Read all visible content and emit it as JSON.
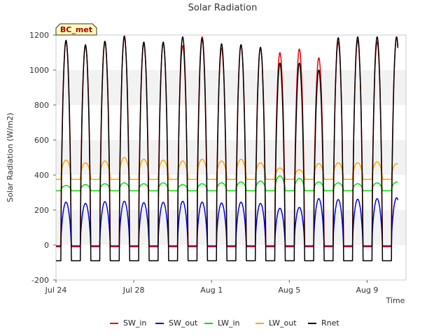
{
  "chart_data": {
    "type": "line",
    "title": "Solar Radiation",
    "ylabel": "Solar Radiation (W/m2)",
    "xlabel": "Time",
    "badge": "BC_met",
    "ylim": [
      -200,
      1200
    ],
    "xlim": [
      "2024-07-24",
      "2024-08-11"
    ],
    "yticks": [
      -200,
      0,
      200,
      400,
      600,
      800,
      1000,
      1200
    ],
    "xticks": [
      {
        "label": "Jul 24",
        "date": "2024-07-24"
      },
      {
        "label": "Jul 28",
        "date": "2024-07-28"
      },
      {
        "label": "Aug 1",
        "date": "2024-08-01"
      },
      {
        "label": "Aug 5",
        "date": "2024-08-05"
      },
      {
        "label": "Aug 9",
        "date": "2024-08-09"
      }
    ],
    "grid": "horizontal bands",
    "legend_position": "bottom",
    "day_start": "2024-07-24",
    "daily_peaks": {
      "dates": [
        "2024-07-24",
        "2024-07-25",
        "2024-07-26",
        "2024-07-27",
        "2024-07-28",
        "2024-07-29",
        "2024-07-30",
        "2024-07-31",
        "2024-08-01",
        "2024-08-02",
        "2024-08-03",
        "2024-08-04",
        "2024-08-05",
        "2024-08-06",
        "2024-08-07",
        "2024-08-08",
        "2024-08-09",
        "2024-08-10"
      ],
      "SW_in": [
        1165,
        1140,
        1160,
        1185,
        1150,
        1155,
        1140,
        1190,
        1125,
        1145,
        1130,
        1100,
        1120,
        1070,
        1160,
        1170,
        1160,
        1185
      ],
      "SW_out": [
        245,
        238,
        248,
        250,
        242,
        244,
        250,
        245,
        240,
        245,
        238,
        210,
        215,
        265,
        260,
        262,
        265,
        270
      ],
      "LW_in": [
        340,
        345,
        350,
        355,
        350,
        355,
        345,
        350,
        355,
        360,
        365,
        395,
        380,
        360,
        355,
        350,
        355,
        360
      ],
      "LW_out": [
        485,
        470,
        480,
        500,
        490,
        485,
        480,
        490,
        480,
        490,
        470,
        440,
        430,
        465,
        470,
        470,
        475,
        465
      ],
      "Rnet": [
        1170,
        1145,
        1165,
        1195,
        1160,
        1160,
        1190,
        1180,
        1150,
        1145,
        1130,
        1040,
        1040,
        1000,
        1185,
        1190,
        1190,
        1190
      ]
    },
    "nightly_values": {
      "SW_in": -10,
      "SW_out": -5,
      "LW_in": 310,
      "LW_out": 375,
      "Rnet": -90
    },
    "series": [
      {
        "name": "SW_in",
        "color": "#e8000b"
      },
      {
        "name": "SW_out",
        "color": "#0000e8"
      },
      {
        "name": "LW_in",
        "color": "#00e000"
      },
      {
        "name": "LW_out",
        "color": "#ffa500"
      },
      {
        "name": "Rnet",
        "color": "#000000"
      }
    ]
  }
}
